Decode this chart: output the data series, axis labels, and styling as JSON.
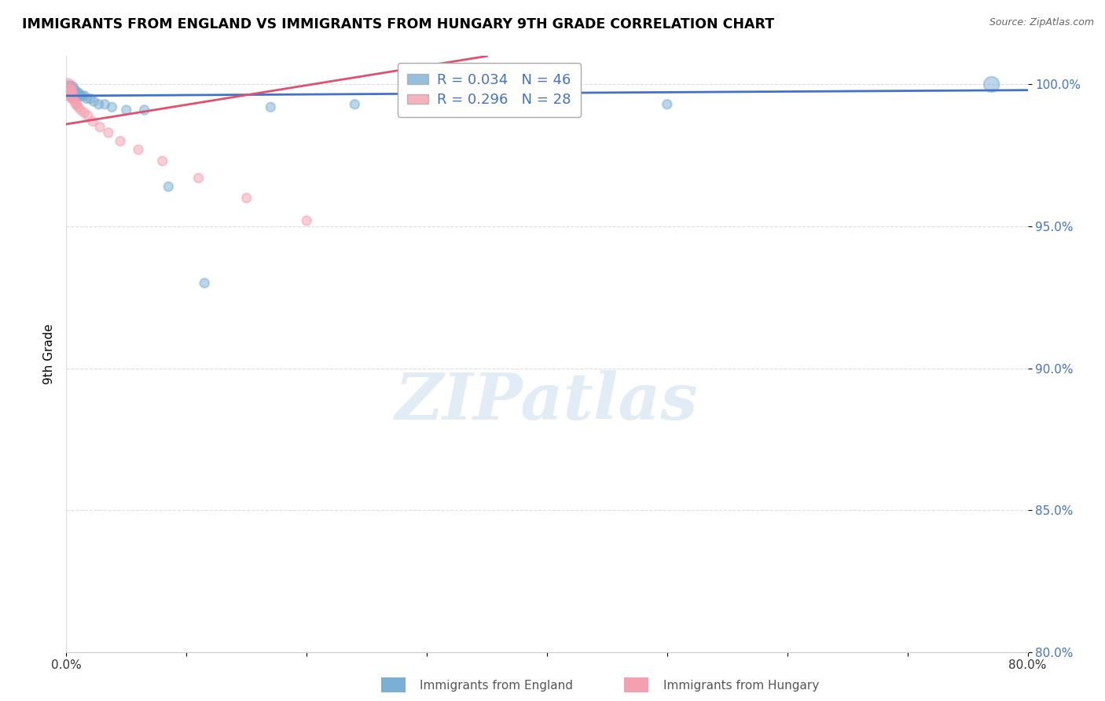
{
  "title": "IMMIGRANTS FROM ENGLAND VS IMMIGRANTS FROM HUNGARY 9TH GRADE CORRELATION CHART",
  "source": "Source: ZipAtlas.com",
  "ylabel": "9th Grade",
  "x_min": 0.0,
  "x_max": 0.8,
  "y_min": 0.8,
  "y_max": 1.01,
  "england_color": "#7BAFD4",
  "hungary_color": "#F4A0B0",
  "england_line_color": "#4472C4",
  "hungary_line_color": "#E05070",
  "england_R": 0.034,
  "england_N": 46,
  "hungary_R": 0.296,
  "hungary_N": 28,
  "legend_entries": [
    "Immigrants from England",
    "Immigrants from Hungary"
  ],
  "watermark": "ZIPatlas",
  "england_x": [
    0.001,
    0.001,
    0.001,
    0.002,
    0.002,
    0.002,
    0.003,
    0.003,
    0.003,
    0.003,
    0.004,
    0.004,
    0.004,
    0.005,
    0.005,
    0.005,
    0.005,
    0.006,
    0.006,
    0.007,
    0.007,
    0.008,
    0.008,
    0.009,
    0.01,
    0.01,
    0.011,
    0.012,
    0.013,
    0.015,
    0.017,
    0.02,
    0.023,
    0.027,
    0.032,
    0.038,
    0.05,
    0.065,
    0.085,
    0.115,
    0.17,
    0.24,
    0.34,
    0.5,
    0.77,
    0.001
  ],
  "england_y": [
    0.999,
    0.998,
    0.997,
    0.999,
    0.998,
    0.997,
    0.999,
    0.998,
    0.997,
    0.996,
    0.999,
    0.998,
    0.997,
    0.999,
    0.998,
    0.997,
    0.996,
    0.998,
    0.997,
    0.998,
    0.997,
    0.997,
    0.996,
    0.997,
    0.997,
    0.996,
    0.996,
    0.996,
    0.996,
    0.996,
    0.995,
    0.995,
    0.994,
    0.993,
    0.993,
    0.992,
    0.991,
    0.991,
    0.964,
    0.93,
    0.992,
    0.993,
    0.993,
    0.993,
    1.0,
    0.999
  ],
  "england_sizes": [
    120,
    80,
    60,
    120,
    80,
    60,
    120,
    100,
    80,
    60,
    80,
    70,
    60,
    100,
    80,
    70,
    60,
    80,
    70,
    80,
    70,
    80,
    70,
    70,
    80,
    70,
    70,
    70,
    70,
    70,
    70,
    70,
    70,
    70,
    70,
    70,
    70,
    70,
    70,
    70,
    70,
    70,
    70,
    70,
    200,
    70
  ],
  "hungary_x": [
    0.001,
    0.001,
    0.002,
    0.002,
    0.003,
    0.003,
    0.004,
    0.004,
    0.005,
    0.005,
    0.006,
    0.007,
    0.008,
    0.009,
    0.01,
    0.012,
    0.015,
    0.018,
    0.022,
    0.028,
    0.035,
    0.045,
    0.06,
    0.08,
    0.11,
    0.15,
    0.2,
    0.001
  ],
  "hungary_y": [
    0.999,
    0.997,
    0.998,
    0.996,
    0.998,
    0.996,
    0.997,
    0.995,
    0.997,
    0.995,
    0.995,
    0.994,
    0.993,
    0.993,
    0.992,
    0.991,
    0.99,
    0.989,
    0.987,
    0.985,
    0.983,
    0.98,
    0.977,
    0.973,
    0.967,
    0.96,
    0.952,
    0.999
  ],
  "hungary_sizes": [
    100,
    60,
    100,
    60,
    100,
    60,
    80,
    60,
    80,
    60,
    70,
    70,
    70,
    70,
    70,
    70,
    70,
    70,
    70,
    70,
    70,
    70,
    70,
    70,
    70,
    70,
    70,
    250
  ],
  "eng_trend_x0": 0.0,
  "eng_trend_x1": 0.8,
  "eng_trend_y0": 0.996,
  "eng_trend_y1": 0.998,
  "hun_trend_x0": 0.0,
  "hun_trend_x1": 0.35,
  "hun_trend_y0": 0.986,
  "hun_trend_y1": 1.01
}
